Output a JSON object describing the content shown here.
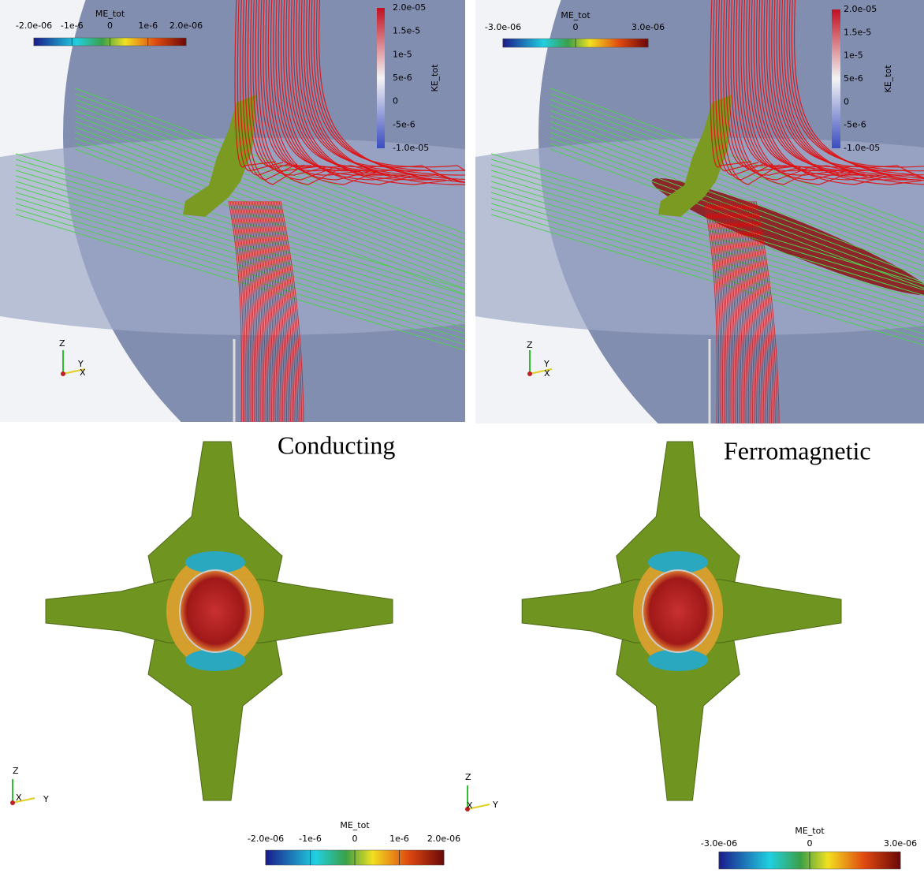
{
  "top_left": {
    "me_colorbar": {
      "title": "ME_tot",
      "ticks": [
        "-2.0e-06",
        "-1e-6",
        "0",
        "1e-6",
        "2.0e-06"
      ]
    },
    "ke_colorbar": {
      "title": "KE_tot",
      "ticks": [
        "2.0e-05",
        "1.5e-5",
        "1e-5",
        "5e-6",
        "0",
        "-5e-6",
        "-1.0e-05"
      ]
    },
    "axes": {
      "z": "Z",
      "y": "Y",
      "x": "X"
    }
  },
  "top_right": {
    "me_colorbar": {
      "title": "ME_tot",
      "ticks": [
        "-3.0e-06",
        "0",
        "3.0e-06"
      ]
    },
    "ke_colorbar": {
      "title": "KE_tot",
      "ticks": [
        "2.0e-05",
        "1.5e-5",
        "1e-5",
        "5e-6",
        "0",
        "-5e-6",
        "-1.0e-05"
      ]
    },
    "axes": {
      "z": "Z",
      "y": "Y",
      "x": "X"
    }
  },
  "bottom_left": {
    "label": "Conducting",
    "me_colorbar": {
      "title": "ME_tot",
      "ticks": [
        "-2.0e-06",
        "-1e-6",
        "0",
        "1e-6",
        "2.0e-06"
      ]
    },
    "axes": {
      "z": "Z",
      "x": "X",
      "y": "Y"
    }
  },
  "bottom_right": {
    "label": "Ferromagnetic",
    "me_colorbar": {
      "title": "ME_tot",
      "ticks": [
        "-3.0e-06",
        "0",
        "3.0e-06"
      ]
    },
    "axes": {
      "z": "Z",
      "x": "X",
      "y": "Y"
    }
  }
}
